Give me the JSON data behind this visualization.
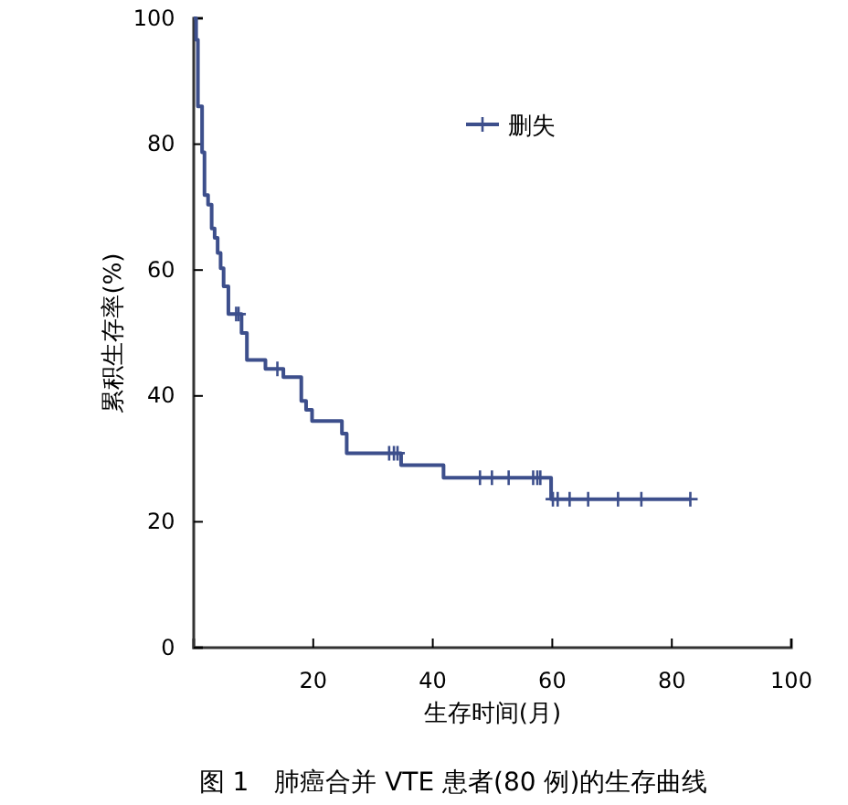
{
  "chart_data": {
    "type": "step",
    "xlabel": "生存时间(月)",
    "ylabel": "累积生存率(%)",
    "annotations": [
      "图 1　肺癌合并 VTE 患者(80 例)的生存曲线"
    ],
    "xlim": [
      0,
      100
    ],
    "xticks": [
      20,
      40,
      60,
      80,
      100
    ],
    "ylim": [
      0,
      100
    ],
    "yticks": [
      0,
      20,
      40,
      60,
      80,
      100
    ],
    "grid": false,
    "legend": "top",
    "line_style": "solid",
    "series": [
      {
        "color": "#3d4f8c",
        "x": [
          0,
          0.4,
          0.7,
          1.4,
          1.8,
          2.4,
          3,
          3.5,
          4,
          4.5,
          5,
          5.8,
          8,
          8.9,
          12,
          15,
          18,
          18.8,
          19.8,
          24.8,
          25.6,
          34.7,
          41.8,
          59.8,
          83.1
        ],
        "values": [
          100,
          96.6,
          86,
          78.7,
          71.9,
          70.4,
          66.6,
          65.1,
          62.7,
          60.3,
          57.4,
          53,
          50,
          45.7,
          44.3,
          43,
          39.2,
          37.8,
          36,
          34,
          30.9,
          29,
          27,
          23.6,
          23.6
        ]
      },
      {
        "type": "scatter",
        "name": "删失",
        "marker": "cross",
        "color": "#3d4f8c",
        "x": [
          7.1,
          7.5,
          14,
          32.7,
          33.5,
          34.1,
          47.9,
          49.9,
          52.7,
          56.8,
          57.5,
          58,
          60.1,
          60.9,
          62.9,
          66,
          71,
          74.9,
          83.1
        ],
        "values": [
          53,
          53,
          44.3,
          30.9,
          30.9,
          30.9,
          27,
          27,
          27,
          27,
          27,
          27,
          23.6,
          23.6,
          23.6,
          23.6,
          23.6,
          23.6,
          23.6
        ]
      }
    ]
  }
}
